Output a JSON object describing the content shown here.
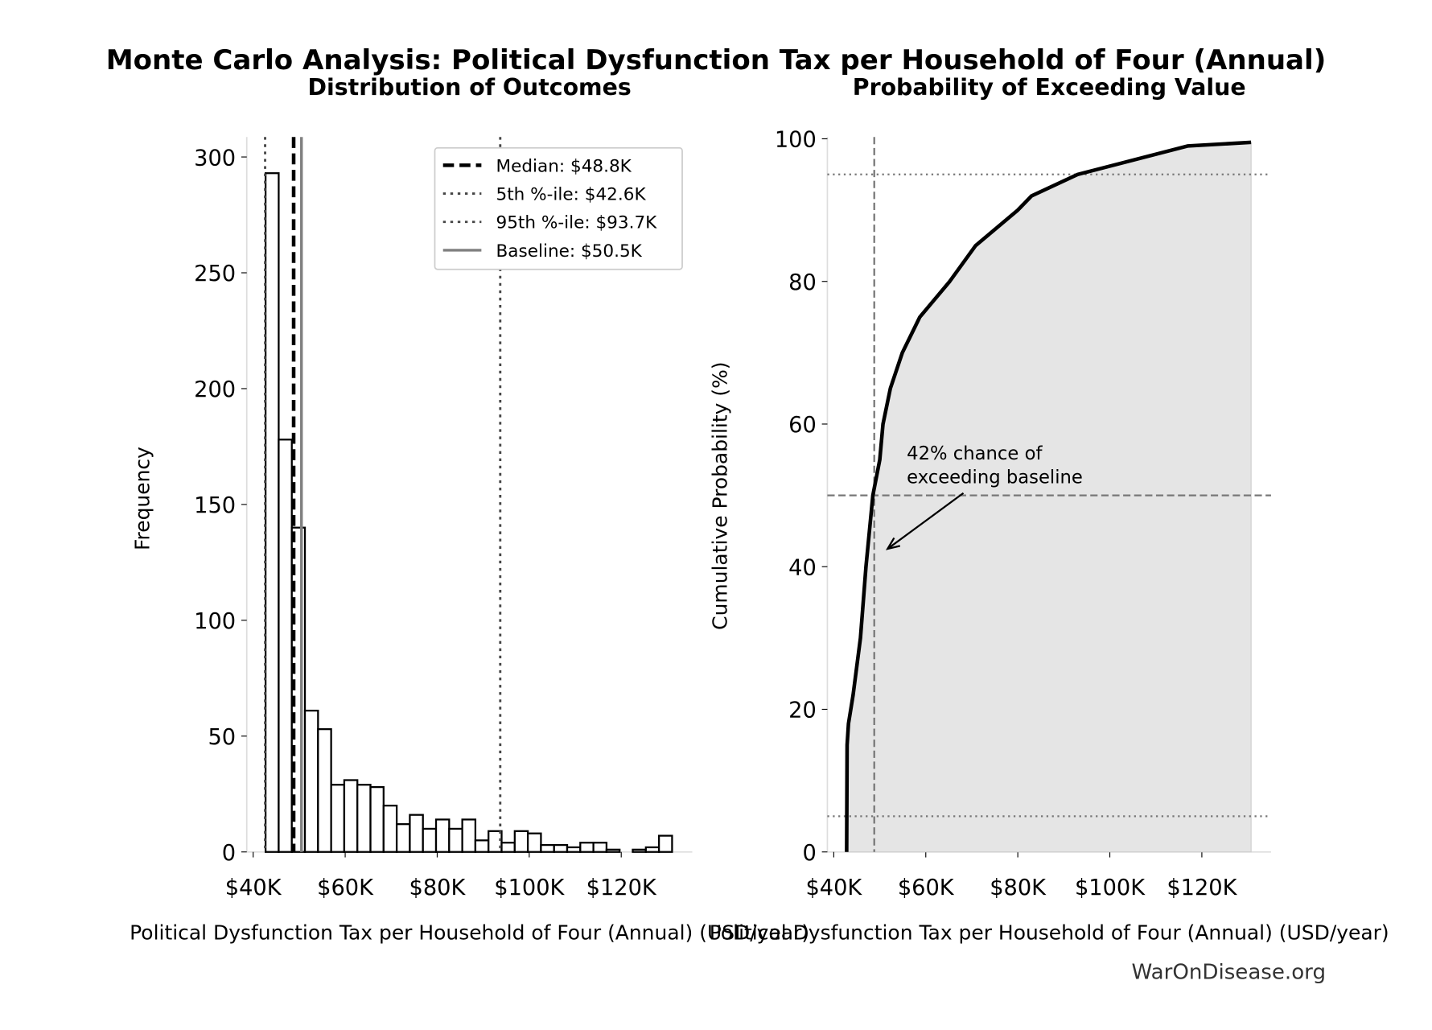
{
  "title": "Monte Carlo Analysis: Political Dysfunction Tax per Household of Four (Annual)",
  "watermark": "WarOnDisease.org",
  "chart_data": [
    {
      "type": "bar",
      "title": "Distribution of Outcomes",
      "xlabel": "Political Dysfunction Tax per Household of Four (Annual) (USD/year)",
      "ylabel": "Frequency",
      "xlim": [
        39,
        136
      ],
      "ylim": [
        0,
        308
      ],
      "xticks": [
        40,
        60,
        80,
        100,
        120
      ],
      "xtick_labels": [
        "$40K",
        "$60K",
        "$80K",
        "$100K",
        "$120K"
      ],
      "yticks": [
        0,
        50,
        100,
        150,
        200,
        250,
        300
      ],
      "bin_start": 42.7,
      "bin_width": 2.85,
      "values": [
        293,
        178,
        140,
        61,
        53,
        29,
        31,
        29,
        28,
        20,
        12,
        16,
        10,
        14,
        10,
        14,
        5,
        9,
        4,
        9,
        8,
        3,
        3,
        2,
        4,
        4,
        1,
        0,
        1,
        2,
        7
      ],
      "bar_color": "#ffffff",
      "edge_color": "#000000",
      "vlines": [
        {
          "label": "Median: $48.8K",
          "x": 48.8,
          "style": "dashed",
          "color": "#000000"
        },
        {
          "label": "5th %-ile: $42.6K",
          "x": 42.6,
          "style": "dotted",
          "color": "#444444"
        },
        {
          "label": "95th %-ile: $93.7K",
          "x": 93.7,
          "style": "dotted",
          "color": "#444444"
        },
        {
          "label": "Baseline: $50.5K",
          "x": 50.5,
          "style": "solid",
          "color": "#808080"
        }
      ],
      "legend": "top-right",
      "grid": false
    },
    {
      "type": "area",
      "title": "Probability of Exceeding Value",
      "xlabel": "Political Dysfunction Tax per Household of Four (Annual) (USD/year)",
      "ylabel": "Cumulative Probability (%)",
      "xlim": [
        39,
        136
      ],
      "ylim": [
        0,
        100
      ],
      "xticks": [
        40,
        60,
        80,
        100,
        120
      ],
      "xtick_labels": [
        "$40K",
        "$60K",
        "$80K",
        "$100K",
        "$120K"
      ],
      "yticks": [
        0,
        20,
        40,
        60,
        80,
        100
      ],
      "x": [
        42.8,
        42.9,
        43.2,
        44.2,
        45.8,
        47.0,
        48.5,
        50.0,
        50.7,
        52.3,
        54.9,
        58.7,
        65.2,
        70.8,
        80.0,
        83.0,
        93.0,
        105.0,
        117.0,
        130.7
      ],
      "y": [
        0,
        15,
        18,
        22,
        30,
        40,
        50,
        55,
        60,
        65,
        70,
        75,
        80,
        85,
        90,
        92,
        95,
        97,
        99,
        99.5
      ],
      "fill_color": "#e5e5e5",
      "line_color": "#000000",
      "hlines": [
        {
          "y": 95,
          "style": "dotted"
        },
        {
          "y": 50,
          "style": "dashed"
        },
        {
          "y": 5,
          "style": "dotted"
        }
      ],
      "vline": {
        "x": 48.8,
        "style": "dashed"
      },
      "annotation": {
        "lines": [
          "42% chance of",
          "exceeding baseline"
        ],
        "point": [
          51.7,
          42.5
        ]
      },
      "grid": false
    }
  ]
}
